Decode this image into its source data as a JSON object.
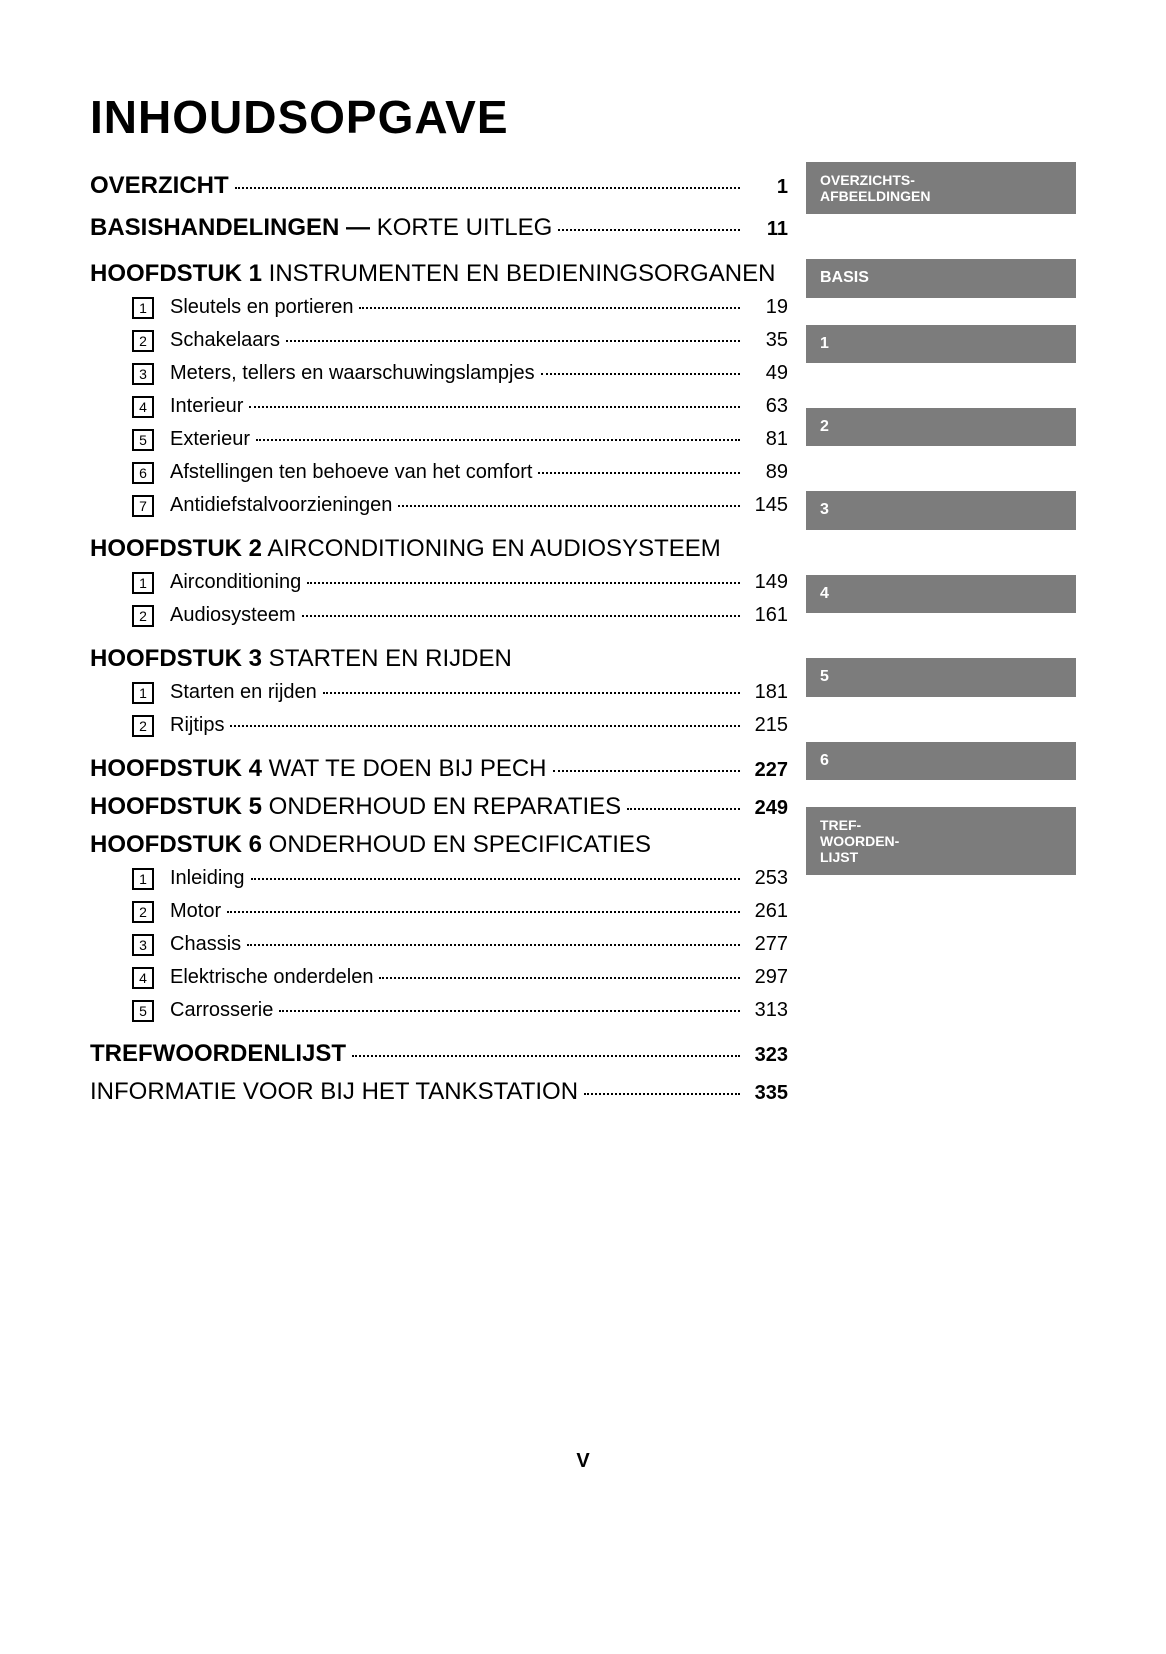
{
  "title": "INHOUDSOPGAVE",
  "footer": "V",
  "colors": {
    "tab_bg": "#7c7c7c",
    "tab_fg": "#ffffff",
    "text": "#000000",
    "bg": "#ffffff"
  },
  "lines": {
    "overzicht": {
      "label": "OVERZICHT",
      "page": "1"
    },
    "basis": {
      "bold": "BASISHANDELINGEN —",
      "rest": " KORTE UITLEG",
      "page": "11"
    },
    "h1": {
      "bold": "HOOFDSTUK 1",
      "rest": "  INSTRUMENTEN EN BEDIENINGSORGANEN"
    },
    "h2": {
      "bold": "HOOFDSTUK 2",
      "rest": "  AIRCONDITIONING EN AUDIOSYSTEEM"
    },
    "h3": {
      "bold": "HOOFDSTUK 3",
      "rest": "  STARTEN EN RIJDEN"
    },
    "h4": {
      "bold": "HOOFDSTUK 4",
      "rest": "  WAT TE DOEN BIJ PECH",
      "page": "227"
    },
    "h5": {
      "bold": "HOOFDSTUK 5",
      "rest": "  ONDERHOUD EN REPARATIES",
      "page": "249"
    },
    "h6": {
      "bold": "HOOFDSTUK 6",
      "rest": "  ONDERHOUD EN SPECIFICATIES"
    },
    "tref": {
      "label": "TREFWOORDENLIJST",
      "page": "323"
    },
    "tank": {
      "label": "INFORMATIE VOOR BIJ HET TANKSTATION",
      "page": "335"
    }
  },
  "h1_items": [
    {
      "n": "1",
      "label": "Sleutels en portieren",
      "page": "19"
    },
    {
      "n": "2",
      "label": "Schakelaars",
      "page": "35"
    },
    {
      "n": "3",
      "label": "Meters, tellers en waarschuwingslampjes",
      "page": "49"
    },
    {
      "n": "4",
      "label": "Interieur",
      "page": "63"
    },
    {
      "n": "5",
      "label": "Exterieur",
      "page": "81"
    },
    {
      "n": "6",
      "label": "Afstellingen ten behoeve van het comfort",
      "page": "89"
    },
    {
      "n": "7",
      "label": "Antidiefstalvoorzieningen",
      "page": "145"
    }
  ],
  "h2_items": [
    {
      "n": "1",
      "label": "Airconditioning",
      "page": "149"
    },
    {
      "n": "2",
      "label": "Audiosysteem",
      "page": "161"
    }
  ],
  "h3_items": [
    {
      "n": "1",
      "label": "Starten en rijden",
      "page": "181"
    },
    {
      "n": "2",
      "label": "Rijtips",
      "page": "215"
    }
  ],
  "h6_items": [
    {
      "n": "1",
      "label": "Inleiding",
      "page": "253"
    },
    {
      "n": "2",
      "label": "Motor",
      "page": "261"
    },
    {
      "n": "3",
      "label": "Chassis",
      "page": "277"
    },
    {
      "n": "4",
      "label": "Elektrische onderdelen",
      "page": "297"
    },
    {
      "n": "5",
      "label": "Carrosserie",
      "page": "313"
    }
  ],
  "tabs": {
    "t0": "OVERZICHTS-\nAFBEELDINGEN",
    "t1": "BASIS",
    "t2": "1",
    "t3": "2",
    "t4": "3",
    "t5": "4",
    "t6": "5",
    "t7": "6",
    "t8": "TREF-\nWOORDEN-\nLIJST"
  }
}
